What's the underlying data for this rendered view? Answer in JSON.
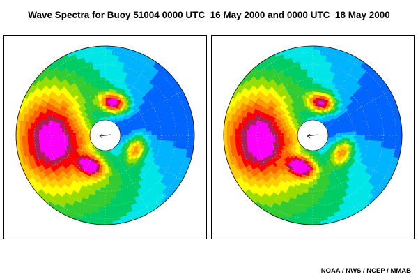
{
  "title": "Wave Spectra for Buoy 51004 0000 UTC  16 May 2000 and 0000 UTC  18 May 2000",
  "credit": "NOAA / NWS / NCEP / MMAB",
  "colors": {
    "scale_low_to_high": [
      "#0022cc",
      "#0066ff",
      "#00b4ff",
      "#00e6e6",
      "#00cc66",
      "#33cc33",
      "#99dd00",
      "#ffff00",
      "#ffcc00",
      "#ff9900",
      "#ff6600",
      "#ff0000",
      "#aa2255",
      "#ff00ff"
    ]
  },
  "chart_data": [
    {
      "type": "heatmap",
      "subtype": "polar directional wave spectrum",
      "grid": "dotted polar rings and spokes",
      "peaks": [
        {
          "direction_deg": 270,
          "relative_energy": 12,
          "description": "dominant swell from the west"
        },
        {
          "direction_deg": 15,
          "relative_energy": 13,
          "description": "secondary peak near center, north"
        },
        {
          "direction_deg": 205,
          "relative_energy": 11,
          "description": "small peak south-west of center"
        },
        {
          "direction_deg": 115,
          "relative_energy": 8,
          "description": "small peak east of center"
        }
      ],
      "low_region": {
        "direction_deg": 70,
        "relative_energy": 0
      }
    },
    {
      "type": "heatmap",
      "subtype": "polar directional wave spectrum",
      "grid": "dotted polar rings and spokes",
      "peaks": [
        {
          "direction_deg": 270,
          "relative_energy": 12,
          "description": "dominant swell from the west"
        },
        {
          "direction_deg": 15,
          "relative_energy": 12,
          "description": "secondary peak near center, north"
        },
        {
          "direction_deg": 200,
          "relative_energy": 12,
          "description": "larger peak south of center"
        },
        {
          "direction_deg": 120,
          "relative_energy": 8,
          "description": "peak east of center"
        }
      ],
      "low_region": {
        "direction_deg": 70,
        "relative_energy": 0
      }
    }
  ]
}
